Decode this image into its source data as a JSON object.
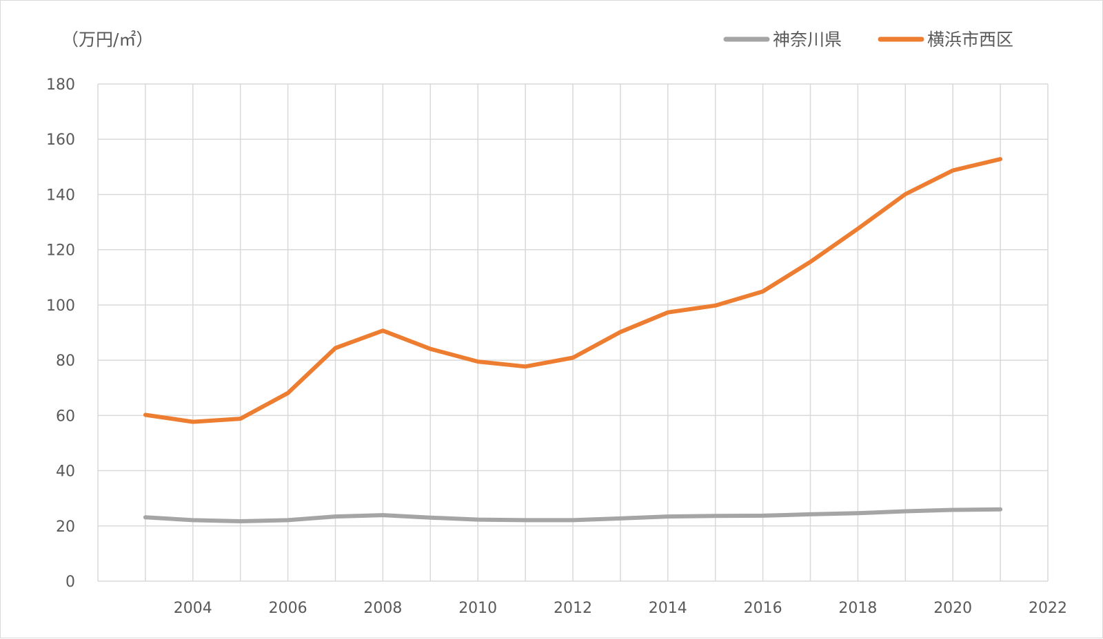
{
  "chart_data": {
    "type": "line",
    "ylabel": "（万円/㎡）",
    "ylim": [
      0,
      180
    ],
    "yticks": [
      0,
      20,
      40,
      60,
      80,
      100,
      120,
      140,
      160,
      180
    ],
    "xlim": [
      2002,
      2022
    ],
    "xticks": [
      2004,
      2006,
      2008,
      2010,
      2012,
      2014,
      2016,
      2018,
      2020,
      2022
    ],
    "grid": true,
    "legend_position": "top-right",
    "x": [
      2003,
      2004,
      2005,
      2006,
      2007,
      2008,
      2009,
      2010,
      2011,
      2012,
      2013,
      2014,
      2015,
      2016,
      2017,
      2018,
      2019,
      2020,
      2021
    ],
    "series": [
      {
        "name": "神奈川県",
        "color": "#a5a5a5",
        "values": [
          23.1,
          22.1,
          21.7,
          22.1,
          23.4,
          23.9,
          23.0,
          22.3,
          22.1,
          22.1,
          22.7,
          23.4,
          23.6,
          23.7,
          24.2,
          24.6,
          25.3,
          25.8,
          26.0
        ]
      },
      {
        "name": "横浜市西区",
        "color": "#ed7d31",
        "values": [
          60.2,
          57.7,
          58.8,
          68.1,
          84.4,
          90.7,
          84.1,
          79.5,
          77.7,
          80.9,
          90.2,
          97.3,
          99.8,
          104.9,
          115.6,
          127.6,
          140.1,
          148.7,
          152.8
        ]
      }
    ]
  }
}
